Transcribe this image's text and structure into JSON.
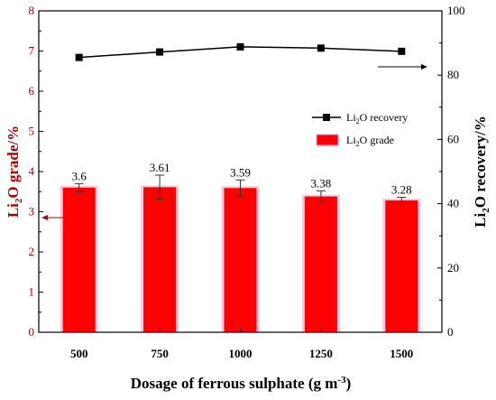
{
  "chart_data": {
    "type": "bar+line",
    "categories": [
      "500",
      "750",
      "1000",
      "1250",
      "1500"
    ],
    "xlabel": "Dosage of ferrous sulphate (g m",
    "xlabel_sup": "-3",
    "xlabel_end": ")",
    "y_left": {
      "label_pre": "Li",
      "label_sub": "2",
      "label_post": "O grade/%",
      "lim": [
        0,
        8
      ],
      "ticks": [
        "0",
        "1",
        "2",
        "3",
        "4",
        "5",
        "6",
        "7",
        "8"
      ],
      "color": "#b00000"
    },
    "y_right": {
      "label_pre": "Li",
      "label_sub": "2",
      "label_post": "O recovery/%",
      "lim": [
        0,
        100
      ],
      "ticks": [
        "0",
        "20",
        "40",
        "60",
        "80",
        "100"
      ]
    },
    "series": [
      {
        "name_pre": "Li",
        "name_sub": "2",
        "name_post": "O grade",
        "kind": "bar",
        "axis": "left",
        "values": [
          3.6,
          3.61,
          3.59,
          3.38,
          3.28
        ],
        "labels": [
          "3.6",
          "3.61",
          "3.59",
          "3.38",
          "3.28"
        ],
        "errors": [
          0.1,
          0.3,
          0.2,
          0.14,
          0.08
        ],
        "color": "#ff0000"
      },
      {
        "name_pre": "Li",
        "name_sub": "2",
        "name_post": "O recovery",
        "kind": "line",
        "axis": "right",
        "values": [
          85.5,
          87.2,
          88.8,
          88.4,
          87.4
        ],
        "color": "#000000"
      }
    ],
    "legend_position": "upper-right"
  }
}
